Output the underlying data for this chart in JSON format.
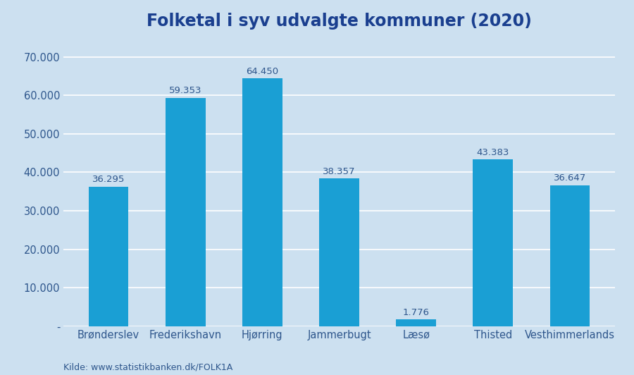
{
  "title": "Folketal i syv udvalgte kommuner (2020)",
  "categories": [
    "Brønderslev",
    "Frederikshavn",
    "Hjørring",
    "Jammerbugt",
    "Læsø",
    "Thisted",
    "Vesthimmerlands"
  ],
  "values": [
    36295,
    59353,
    64450,
    38357,
    1776,
    43383,
    36647
  ],
  "labels": [
    "36.295",
    "59.353",
    "64.450",
    "38.357",
    "1.776",
    "43.383",
    "36.647"
  ],
  "bar_color": "#1a9fd4",
  "background_color": "#cce0f0",
  "title_color": "#1a3f8f",
  "tick_label_color": "#2e568c",
  "value_label_color": "#2e568c",
  "source_text": "Kilde: www.statistikbanken.dk/FOLK1A",
  "ylim": [
    0,
    75000
  ],
  "yticks": [
    0,
    10000,
    20000,
    30000,
    40000,
    50000,
    60000,
    70000
  ],
  "ytick_labels": [
    "-",
    "10.000",
    "20.000",
    "30.000",
    "40.000",
    "50.000",
    "60.000",
    "70.000"
  ],
  "title_fontsize": 17,
  "tick_fontsize": 10.5,
  "value_fontsize": 9.5,
  "source_fontsize": 9,
  "bar_width": 0.52
}
